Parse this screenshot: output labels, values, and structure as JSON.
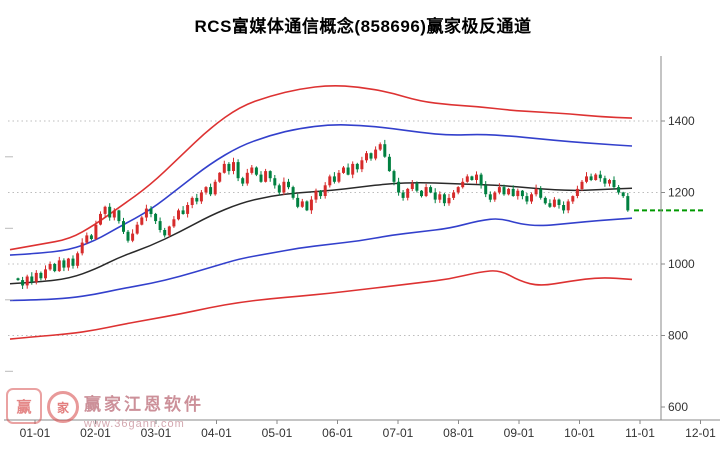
{
  "title": "RCS富媒体通信概念(858696)赢家极反通道",
  "watermark": {
    "brand": "赢家江恩软件",
    "url": "www.36gann.com",
    "logo_box_char": "赢",
    "logo_ring_char": "家"
  },
  "chart_data": {
    "type": "candlestick",
    "title": "RCS富媒体通信概念(858696)赢家极反通道",
    "legend_position": "none",
    "grid": true,
    "colors": {
      "background": "#ffffff",
      "grid": "#bdbdbd",
      "axis": "#8a8a8a",
      "label": "#333333",
      "candle_up": "#d62b2b",
      "candle_down": "#008040"
    },
    "x_axis": {
      "labels": [
        "01-01",
        "02-01",
        "03-01",
        "04-01",
        "05-01",
        "06-01",
        "07-01",
        "08-01",
        "09-01",
        "10-01",
        "11-01",
        "12-01"
      ]
    },
    "y_axis": {
      "ticks": [
        600,
        800,
        1000,
        1200,
        1400
      ],
      "gridlines": [
        800,
        1000,
        1200,
        1400
      ],
      "minor_left_ticks": [
        700,
        900,
        1100,
        1300
      ],
      "range": [
        565,
        1570
      ]
    },
    "series": {
      "candles": {
        "note": "daily closes Jan-Oct; open = previous close",
        "first_open": 960,
        "closes": [
          955,
          940,
          965,
          950,
          975,
          960,
          985,
          1000,
          980,
          1010,
          990,
          1015,
          995,
          1030,
          1060,
          1080,
          1070,
          1110,
          1140,
          1160,
          1130,
          1150,
          1120,
          1090,
          1065,
          1085,
          1110,
          1130,
          1155,
          1140,
          1120,
          1095,
          1080,
          1105,
          1125,
          1150,
          1140,
          1165,
          1185,
          1175,
          1200,
          1215,
          1195,
          1230,
          1255,
          1280,
          1260,
          1285,
          1240,
          1225,
          1255,
          1270,
          1250,
          1230,
          1260,
          1240,
          1220,
          1200,
          1230,
          1215,
          1185,
          1160,
          1175,
          1150,
          1180,
          1205,
          1190,
          1220,
          1245,
          1230,
          1255,
          1270,
          1250,
          1280,
          1265,
          1290,
          1310,
          1295,
          1320,
          1335,
          1300,
          1260,
          1230,
          1200,
          1185,
          1210,
          1225,
          1205,
          1190,
          1215,
          1200,
          1180,
          1195,
          1170,
          1185,
          1200,
          1215,
          1230,
          1245,
          1235,
          1250,
          1220,
          1195,
          1180,
          1200,
          1215,
          1195,
          1210,
          1190,
          1205,
          1190,
          1175,
          1195,
          1210,
          1185,
          1170,
          1160,
          1180,
          1165,
          1150,
          1175,
          1190,
          1210,
          1230,
          1245,
          1235,
          1250,
          1240,
          1225,
          1235,
          1215,
          1200,
          1190,
          1150
        ]
      },
      "channel_lines": [
        {
          "name": "upper-outer-red",
          "color": "#dd3232",
          "width": 1.6,
          "points": [
            [
              10,
              1040
            ],
            [
              40,
              1055
            ],
            [
              70,
              1070
            ],
            [
              95,
              1110
            ],
            [
              120,
              1160
            ],
            [
              150,
              1220
            ],
            [
              180,
              1300
            ],
            [
              210,
              1380
            ],
            [
              240,
              1440
            ],
            [
              270,
              1470
            ],
            [
              300,
              1490
            ],
            [
              330,
              1500
            ],
            [
              360,
              1495
            ],
            [
              390,
              1480
            ],
            [
              420,
              1455
            ],
            [
              450,
              1445
            ],
            [
              480,
              1440
            ],
            [
              510,
              1430
            ],
            [
              540,
              1425
            ],
            [
              570,
              1420
            ],
            [
              600,
              1412
            ],
            [
              632,
              1408
            ]
          ]
        },
        {
          "name": "upper-inner-blue",
          "color": "#3340cc",
          "width": 1.6,
          "points": [
            [
              10,
              1025
            ],
            [
              40,
              1030
            ],
            [
              70,
              1040
            ],
            [
              95,
              1065
            ],
            [
              120,
              1105
            ],
            [
              150,
              1150
            ],
            [
              180,
              1215
            ],
            [
              210,
              1280
            ],
            [
              240,
              1330
            ],
            [
              270,
              1360
            ],
            [
              300,
              1380
            ],
            [
              330,
              1390
            ],
            [
              360,
              1388
            ],
            [
              390,
              1380
            ],
            [
              420,
              1368
            ],
            [
              450,
              1360
            ],
            [
              480,
              1363
            ],
            [
              510,
              1358
            ],
            [
              540,
              1350
            ],
            [
              570,
              1342
            ],
            [
              600,
              1336
            ],
            [
              632,
              1330
            ]
          ]
        },
        {
          "name": "center-ma-black",
          "color": "#2a2a2a",
          "width": 1.5,
          "points": [
            [
              10,
              945
            ],
            [
              40,
              950
            ],
            [
              70,
              960
            ],
            [
              95,
              985
            ],
            [
              120,
              1020
            ],
            [
              150,
              1050
            ],
            [
              180,
              1090
            ],
            [
              210,
              1135
            ],
            [
              240,
              1170
            ],
            [
              270,
              1190
            ],
            [
              300,
              1200
            ],
            [
              330,
              1205
            ],
            [
              360,
              1215
            ],
            [
              390,
              1225
            ],
            [
              420,
              1228
            ],
            [
              450,
              1225
            ],
            [
              480,
              1222
            ],
            [
              510,
              1218
            ],
            [
              540,
              1210
            ],
            [
              570,
              1205
            ],
            [
              600,
              1208
            ],
            [
              632,
              1212
            ]
          ]
        },
        {
          "name": "lower-inner-blue",
          "color": "#3340cc",
          "width": 1.6,
          "points": [
            [
              10,
              898
            ],
            [
              40,
              900
            ],
            [
              70,
              905
            ],
            [
              95,
              915
            ],
            [
              120,
              930
            ],
            [
              150,
              945
            ],
            [
              180,
              965
            ],
            [
              210,
              990
            ],
            [
              240,
              1015
            ],
            [
              270,
              1030
            ],
            [
              300,
              1045
            ],
            [
              330,
              1055
            ],
            [
              360,
              1065
            ],
            [
              390,
              1080
            ],
            [
              420,
              1090
            ],
            [
              450,
              1100
            ],
            [
              480,
              1122
            ],
            [
              500,
              1128
            ],
            [
              520,
              1112
            ],
            [
              540,
              1106
            ],
            [
              570,
              1114
            ],
            [
              600,
              1122
            ],
            [
              632,
              1128
            ]
          ]
        },
        {
          "name": "lower-outer-red",
          "color": "#dd3232",
          "width": 1.6,
          "points": [
            [
              10,
              790
            ],
            [
              40,
              798
            ],
            [
              70,
              805
            ],
            [
              95,
              815
            ],
            [
              120,
              830
            ],
            [
              150,
              845
            ],
            [
              180,
              860
            ],
            [
              210,
              878
            ],
            [
              240,
              893
            ],
            [
              270,
              903
            ],
            [
              300,
              910
            ],
            [
              330,
              918
            ],
            [
              360,
              928
            ],
            [
              390,
              938
            ],
            [
              420,
              948
            ],
            [
              450,
              958
            ],
            [
              480,
              978
            ],
            [
              500,
              983
            ],
            [
              520,
              952
            ],
            [
              540,
              938
            ],
            [
              570,
              952
            ],
            [
              600,
              963
            ],
            [
              632,
              957
            ]
          ]
        }
      ],
      "flat_segment": {
        "name": "green-dashed-extension",
        "value": 1150,
        "x_start": 634,
        "x_end": 704,
        "color": "#009900",
        "style": "dashed"
      }
    }
  }
}
